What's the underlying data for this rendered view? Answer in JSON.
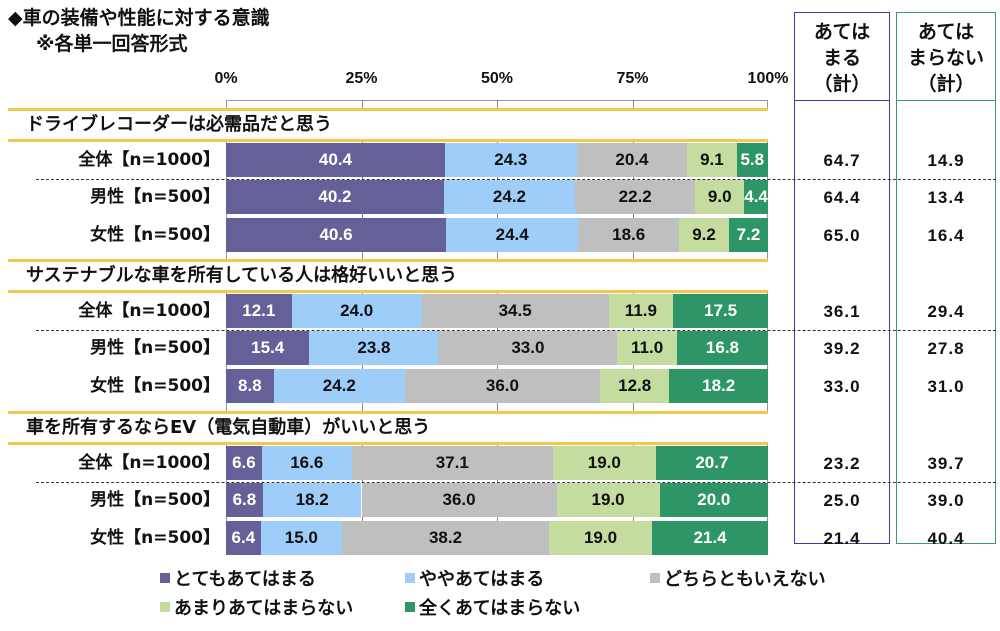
{
  "chart_data": {
    "type": "bar",
    "orientation": "horizontal-stacked-100",
    "title": "◆車の装備や性能に対する意識",
    "subtitle": "※各単一回答形式",
    "xlim": [
      0,
      100
    ],
    "ticks": [
      "0%",
      "25%",
      "50%",
      "75%",
      "100%"
    ],
    "tick_values": [
      0,
      25,
      50,
      75,
      100
    ],
    "series_names": [
      "とてもあてはまる",
      "ややあてはまる",
      "どちらともいえない",
      "あまりあてはまらない",
      "全くあてはまらない"
    ],
    "series_colors": [
      "#636198",
      "#9dcdf8",
      "#bfbfbf",
      "#c4dca0",
      "#2e9666"
    ],
    "series_text_colors": [
      "#ffffff",
      "#111111",
      "#111111",
      "#111111",
      "#ffffff"
    ],
    "legend_position": "bottom",
    "summary_headers": [
      {
        "lines": [
          "あては",
          "まる",
          "（計）"
        ],
        "color": "#3b3f9a"
      },
      {
        "lines": [
          "あては",
          "まらない",
          "（計）"
        ],
        "color": "#3a9a6a"
      }
    ],
    "groups": [
      {
        "question": "ドライブレコーダーは必需品だと思う",
        "rows": [
          {
            "label": "全体【n=1000】",
            "values": [
              40.4,
              24.3,
              20.4,
              9.1,
              5.8
            ],
            "labels": [
              "40.4",
              "24.3",
              "20.4",
              "9.1",
              "5.8"
            ],
            "agree": "64.7",
            "disagree": "14.9"
          },
          {
            "label": "男性【n=500】",
            "values": [
              40.2,
              24.2,
              22.2,
              9.0,
              4.4
            ],
            "labels": [
              "40.2",
              "24.2",
              "22.2",
              "9.0",
              "4.4"
            ],
            "agree": "64.4",
            "disagree": "13.4"
          },
          {
            "label": "女性【n=500】",
            "values": [
              40.6,
              24.4,
              18.6,
              9.2,
              7.2
            ],
            "labels": [
              "40.6",
              "24.4",
              "18.6",
              "9.2",
              "7.2"
            ],
            "agree": "65.0",
            "disagree": "16.4"
          }
        ]
      },
      {
        "question": "サステナブルな車を所有している人は格好いいと思う",
        "rows": [
          {
            "label": "全体【n=1000】",
            "values": [
              12.1,
              24.0,
              34.5,
              11.9,
              17.5
            ],
            "labels": [
              "12.1",
              "24.0",
              "34.5",
              "11.9",
              "17.5"
            ],
            "agree": "36.1",
            "disagree": "29.4"
          },
          {
            "label": "男性【n=500】",
            "values": [
              15.4,
              23.8,
              33.0,
              11.0,
              16.8
            ],
            "labels": [
              "15.4",
              "23.8",
              "33.0",
              "11.0",
              "16.8"
            ],
            "agree": "39.2",
            "disagree": "27.8"
          },
          {
            "label": "女性【n=500】",
            "values": [
              8.8,
              24.2,
              36.0,
              12.8,
              18.2
            ],
            "labels": [
              "8.8",
              "24.2",
              "36.0",
              "12.8",
              "18.2"
            ],
            "agree": "33.0",
            "disagree": "31.0"
          }
        ]
      },
      {
        "question": "車を所有するならEV（電気自動車）がいいと思う",
        "rows": [
          {
            "label": "全体【n=1000】",
            "values": [
              6.6,
              16.6,
              37.1,
              19.0,
              20.7
            ],
            "labels": [
              "6.6",
              "16.6",
              "37.1",
              "19.0",
              "20.7"
            ],
            "agree": "23.2",
            "disagree": "39.7"
          },
          {
            "label": "男性【n=500】",
            "values": [
              6.8,
              18.2,
              36.0,
              19.0,
              20.0
            ],
            "labels": [
              "6.8",
              "18.2",
              "36.0",
              "19.0",
              "20.0"
            ],
            "agree": "25.0",
            "disagree": "39.0"
          },
          {
            "label": "女性【n=500】",
            "values": [
              6.4,
              15.0,
              38.2,
              19.0,
              21.4
            ],
            "labels": [
              "6.4",
              "15.0",
              "38.2",
              "19.0",
              "21.4"
            ],
            "agree": "21.4",
            "disagree": "40.4"
          }
        ]
      }
    ]
  }
}
